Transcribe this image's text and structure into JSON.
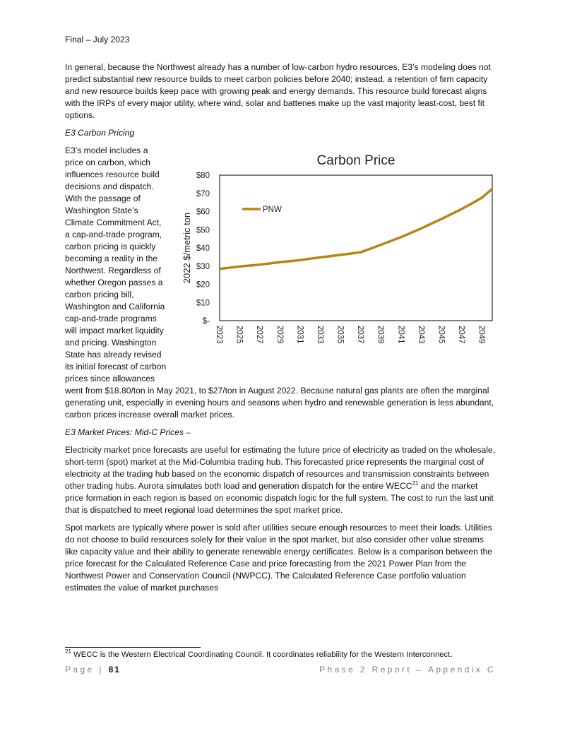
{
  "header": "Final – July 2023",
  "para1": "In general, because the Northwest already has a number of low-carbon hydro resources, E3’s modeling does not predict substantial new resource builds to meet carbon policies before 2040; instead, a retention of firm capacity and new resource builds keep pace with growing peak and energy demands. This resource build forecast aligns with the IRPs of every major utility, where wind, solar and batteries make up the vast majority least-cost, best fit options.",
  "heading1": "E3 Carbon Pricing",
  "para2": "E3’s model includes a price on carbon, which influences resource build decisions and dispatch. With the passage of Washington State’s Climate Commitment Act, a cap-and-trade program, carbon pricing is quickly becoming a reality in the Northwest. Regardless of whether Oregon passes a carbon pricing bill, Washington and California cap-and-trade programs will impact market liquidity and pricing. Washington State has already revised its initial forecast of carbon prices since allowances went from $18.80/ton in May 2021, to $27/ton in August 2022. Because natural gas plants are often the marginal generating unit, especially in evening hours and seasons when hydro and renewable generation is less abundant, carbon prices increase overall market prices.",
  "heading2": "E3 Market Prices: Mid-C Prices –",
  "para3a": "Electricity market price forecasts are useful for estimating the future price of electricity as traded on the wholesale, short-term (spot) market at the Mid-Columbia trading hub. This forecasted price represents the marginal cost of electricity at the trading hub based on the economic dispatch of resources and transmission constraints between other trading hubs. Aurora simulates both load and generation dispatch for the entire WECC",
  "para3_sup": "21",
  "para3b": " and the market price formation in each region is based on economic dispatch logic for the full system. The cost to run the last unit that is dispatched to meet regional load determines the spot market price.",
  "para4": "Spot markets are typically where power is sold after utilities secure enough resources to meet their loads. Utilities do not choose to build resources solely for their value in the spot market, but also consider other value streams like capacity value and their ability to generate renewable energy certificates. Below is a comparison between the price forecast for the Calculated Reference Case and price forecasting from the 2021 Power Plan from the Northwest Power and Conservation Council (NWPCC). The Calculated Reference Case portfolio valuation estimates the value of market purchases",
  "footnote_num": "21",
  "footnote_text": " WECC is the Western Electrical Coordinating Council. It coordinates reliability for the Western Interconnect.",
  "footer": {
    "page_label": "Page | ",
    "page_num": "81",
    "right": "Phase 2 Report – Appendix C"
  },
  "chart_data": {
    "type": "line",
    "title": "Carbon Price",
    "xlabel": "",
    "ylabel": "2022 $/metric ton",
    "ylim": [
      0,
      80
    ],
    "yticks": [
      "$-",
      "$10",
      "$20",
      "$30",
      "$40",
      "$50",
      "$60",
      "$70",
      "$80"
    ],
    "xticks": [
      "2023",
      "2025",
      "2027",
      "2029",
      "2031",
      "2033",
      "2035",
      "2037",
      "2039",
      "2041",
      "2043",
      "2045",
      "2047",
      "2049"
    ],
    "x": [
      2023,
      2024,
      2025,
      2026,
      2027,
      2028,
      2029,
      2030,
      2031,
      2032,
      2033,
      2034,
      2035,
      2036,
      2037,
      2038,
      2039,
      2040,
      2041,
      2042,
      2043,
      2044,
      2045,
      2046,
      2047,
      2048,
      2049,
      2050
    ],
    "series": [
      {
        "name": "PNW",
        "color": "#B8860B",
        "values": [
          28.5,
          29.1,
          29.8,
          30.3,
          30.8,
          31.5,
          32.2,
          32.7,
          33.3,
          34.1,
          34.8,
          35.5,
          36.2,
          36.9,
          37.7,
          39.7,
          41.8,
          43.9,
          46.0,
          48.4,
          50.8,
          53.4,
          56.0,
          58.7,
          61.5,
          64.5,
          67.7,
          72.5
        ]
      }
    ],
    "legend": "top-left",
    "grid": false
  }
}
